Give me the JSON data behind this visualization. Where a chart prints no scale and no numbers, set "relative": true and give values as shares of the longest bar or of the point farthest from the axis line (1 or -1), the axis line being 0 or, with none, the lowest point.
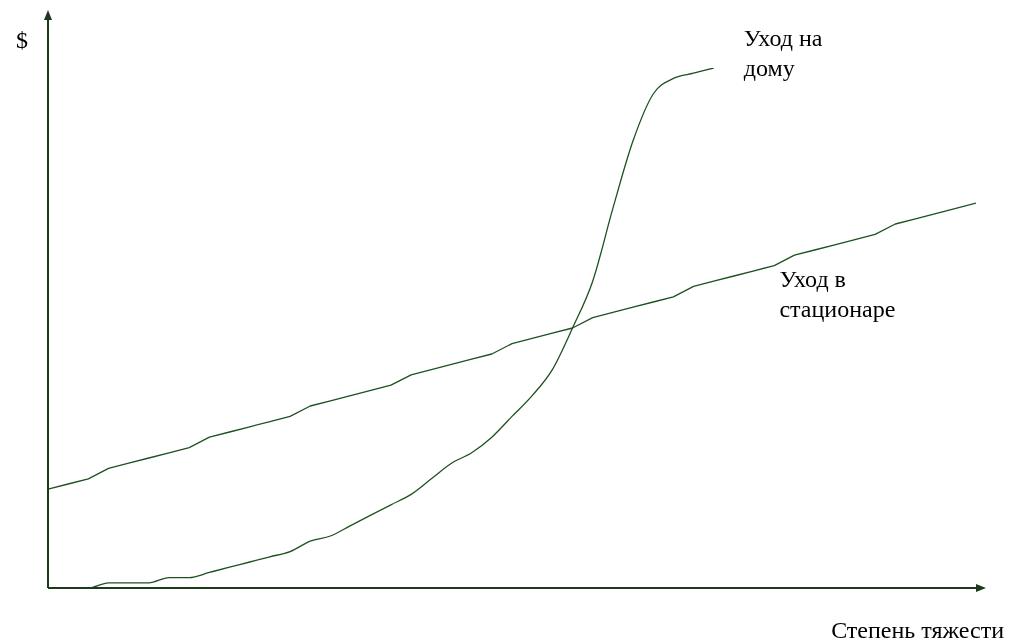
{
  "chart_data": {
    "type": "line",
    "relative": true,
    "xlabel": "Степень тяжести",
    "ylabel": "$",
    "grid": false,
    "legend": false,
    "marker": "none",
    "line_style": "solid",
    "categories": [
      null,
      null,
      null,
      null,
      null,
      null,
      null,
      null,
      null,
      null,
      null,
      null,
      null,
      null,
      null,
      null,
      null,
      null,
      null,
      null,
      null,
      null,
      null,
      null,
      null,
      null,
      null,
      null,
      null,
      null,
      null,
      null,
      null,
      null,
      null,
      null,
      null,
      null,
      null,
      null,
      null,
      null,
      null,
      null,
      null,
      null,
      null
    ],
    "series": [
      {
        "name": "Уход на дому",
        "color": "#1f5020",
        "values": [
          0,
          0,
          0,
          0.01,
          0.01,
          0.01,
          0.02,
          0.02,
          0.03,
          0.04,
          0.05,
          0.06,
          0.07,
          0.09,
          0.1,
          0.12,
          0.14,
          0.16,
          0.18,
          0.21,
          0.24,
          0.26,
          0.29,
          0.33,
          0.37,
          0.42,
          0.5,
          0.59,
          0.73,
          0.86,
          0.95,
          0.98,
          0.99,
          1,
          null,
          null,
          null,
          null,
          null,
          null,
          null,
          null,
          null,
          null,
          null,
          null,
          null
        ]
      },
      {
        "name": "Уход в стационаре",
        "color": "#1f5020",
        "values": [
          0.19,
          0.2,
          0.21,
          0.23,
          0.24,
          0.25,
          0.26,
          0.27,
          0.29,
          0.3,
          0.31,
          0.32,
          0.33,
          0.35,
          0.36,
          0.37,
          0.38,
          0.39,
          0.41,
          0.42,
          0.43,
          0.44,
          0.45,
          0.47,
          0.48,
          0.49,
          0.5,
          0.52,
          0.53,
          0.54,
          0.55,
          0.56,
          0.58,
          0.59,
          0.6,
          0.61,
          0.62,
          0.64,
          0.65,
          0.66,
          0.67,
          0.68,
          0.7,
          0.71,
          0.72,
          0.73,
          0.74
        ]
      }
    ]
  }
}
